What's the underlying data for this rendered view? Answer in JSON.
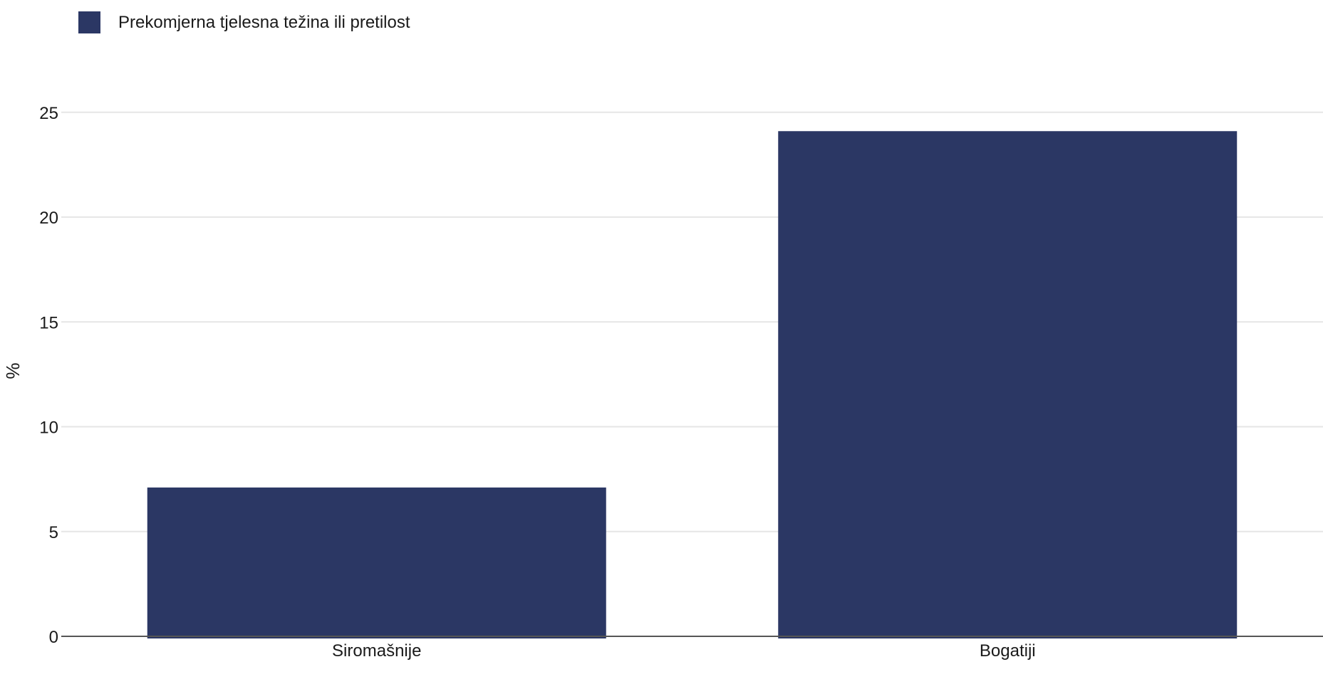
{
  "chart_data": {
    "type": "bar",
    "categories": [
      "Siromašnije",
      "Bogatiji"
    ],
    "series": [
      {
        "name": "Prekomjerna tjelesna težina ili pretilost",
        "values": [
          7.1,
          24.1
        ],
        "color": "#2b3764"
      }
    ],
    "ylabel": "%",
    "xlabel": "",
    "ylim": [
      0,
      27
    ],
    "yticks": [
      0,
      5,
      10,
      15,
      20,
      25
    ],
    "grid": true,
    "legend_position": "top-left"
  }
}
